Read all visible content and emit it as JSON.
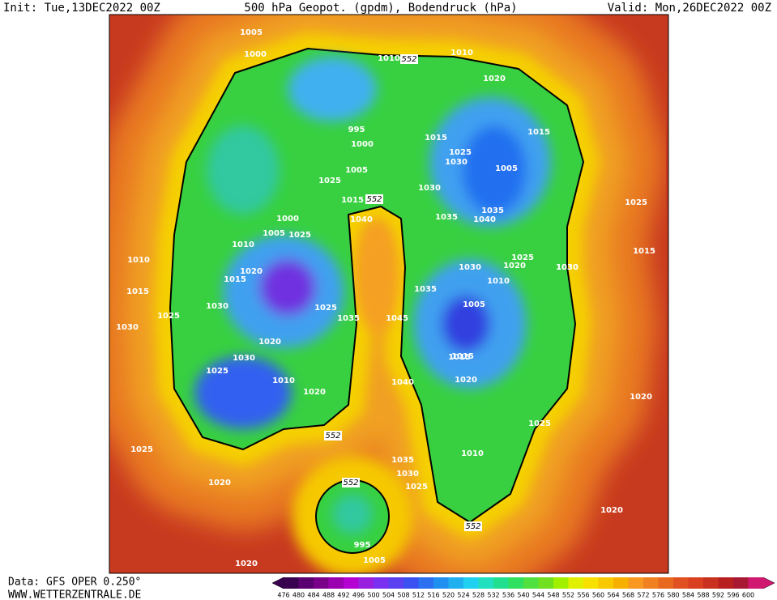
{
  "header": {
    "init": "Init: Tue,13DEC2022 00Z",
    "title": "500 hPa Geopot. (gpdm), Bodendruck (hPa)",
    "valid": "Valid: Mon,26DEC2022 00Z"
  },
  "footer": {
    "source": "Data: GFS OPER 0.250°",
    "site": "WWW.WETTERZENTRALE.DE"
  },
  "colorbar": {
    "labels": [
      476,
      480,
      484,
      488,
      492,
      496,
      500,
      504,
      508,
      512,
      516,
      520,
      524,
      528,
      532,
      536,
      540,
      544,
      548,
      552,
      556,
      560,
      564,
      568,
      572,
      576,
      580,
      584,
      588,
      592,
      596,
      600
    ],
    "colors": [
      "#3a0050",
      "#5a0070",
      "#7a008a",
      "#9a00b0",
      "#b400d0",
      "#9a20e0",
      "#7a30f0",
      "#5a40f0",
      "#3a50f0",
      "#2a70f0",
      "#2090f0",
      "#20b0f0",
      "#20d0f0",
      "#20e0c0",
      "#20e090",
      "#30e060",
      "#50e040",
      "#70e020",
      "#a0f000",
      "#e0f000",
      "#f8e000",
      "#f8c800",
      "#f8b000",
      "#f89820",
      "#f08020",
      "#e86820",
      "#e05020",
      "#d84020",
      "#c83020",
      "#b82020",
      "#a81830",
      "#d01870"
    ]
  },
  "map": {
    "isobars": [
      "1005",
      "1000",
      "1010",
      "1010",
      "1020",
      "995",
      "1000",
      "1005",
      "1015",
      "1025",
      "1030",
      "1005",
      "1015",
      "1025",
      "1030",
      "1035",
      "1035",
      "1040",
      "1015",
      "1010",
      "1040",
      "1000",
      "1005",
      "1025",
      "1010",
      "1015",
      "1020",
      "1015",
      "1030",
      "1025",
      "1030",
      "1035",
      "1030",
      "1020",
      "1025",
      "1030",
      "1010",
      "1005",
      "1025",
      "1045",
      "1035",
      "1015",
      "1020",
      "1030",
      "1025",
      "1020",
      "1010",
      "1020",
      "1040",
      "1015",
      "1010",
      "1030",
      "1025",
      "1035",
      "1025",
      "1020",
      "1020",
      "1025",
      "1015",
      "1020",
      "1030",
      "1025",
      "995",
      "1005",
      "1020"
    ],
    "contour_labels": [
      "552",
      "552",
      "552",
      "552",
      "552"
    ]
  }
}
